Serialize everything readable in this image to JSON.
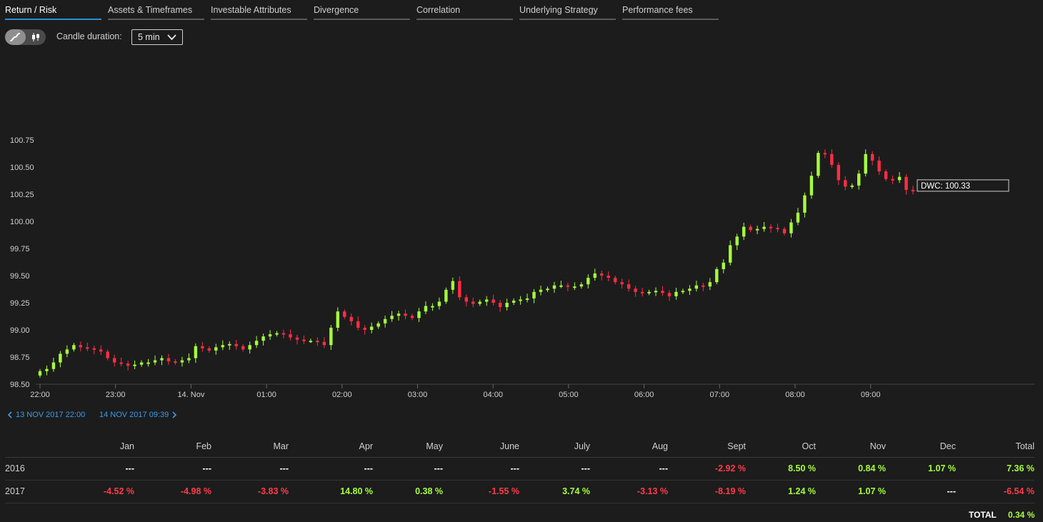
{
  "tabs": [
    {
      "label": "Return / Risk",
      "active": true
    },
    {
      "label": "Assets & Timeframes"
    },
    {
      "label": "Investable Attributes"
    },
    {
      "label": "Divergence"
    },
    {
      "label": "Correlation"
    },
    {
      "label": "Underlying Strategy"
    },
    {
      "label": "Performance fees"
    }
  ],
  "toolbar": {
    "chart_type_toggle": [
      "line-chart-icon",
      "candlestick-icon"
    ],
    "candle_label": "Candle duration:",
    "candle_value": "5 min"
  },
  "colors": {
    "up": "#a6ff3a",
    "down": "#ff2d45",
    "accent": "#2a8fd6",
    "background": "#1c1c1c"
  },
  "chart_data": {
    "type": "candlestick",
    "y_ticks": [
      "100.75",
      "100.50",
      "100.25",
      "100.00",
      "99.75",
      "99.50",
      "99.25",
      "99.00",
      "98.75",
      "98.50"
    ],
    "ylim": [
      98.43,
      100.96
    ],
    "x_ticks": [
      "22:00",
      "23:00",
      "14. Nov",
      "01:00",
      "02:00",
      "03:00",
      "04:00",
      "05:00",
      "06:00",
      "07:00",
      "08:00",
      "09:00"
    ],
    "annotation": "DWC: 100.33",
    "closes": [
      98.62,
      98.64,
      98.7,
      98.78,
      98.82,
      98.86,
      98.84,
      98.83,
      98.82,
      98.8,
      98.74,
      98.7,
      98.69,
      98.67,
      98.68,
      98.7,
      98.7,
      98.72,
      98.74,
      98.71,
      98.7,
      98.72,
      98.74,
      98.85,
      98.83,
      98.81,
      98.84,
      98.86,
      98.87,
      98.85,
      98.82,
      98.86,
      98.9,
      98.94,
      98.96,
      98.97,
      98.96,
      98.93,
      98.91,
      98.9,
      98.9,
      98.89,
      98.86,
      99.02,
      99.17,
      99.12,
      99.08,
      99.02,
      99.0,
      99.03,
      99.06,
      99.1,
      99.13,
      99.15,
      99.13,
      99.11,
      99.17,
      99.22,
      99.22,
      99.26,
      99.37,
      99.45,
      99.3,
      99.26,
      99.24,
      99.26,
      99.28,
      99.25,
      99.21,
      99.25,
      99.27,
      99.28,
      99.29,
      99.35,
      99.37,
      99.38,
      99.41,
      99.41,
      99.4,
      99.4,
      99.42,
      99.48,
      99.52,
      99.5,
      99.48,
      99.44,
      99.42,
      99.38,
      99.35,
      99.34,
      99.35,
      99.36,
      99.34,
      99.31,
      99.35,
      99.36,
      99.38,
      99.41,
      99.4,
      99.44,
      99.56,
      99.62,
      99.78,
      99.86,
      99.95,
      99.92,
      99.93,
      99.95,
      99.94,
      99.93,
      99.89,
      99.99,
      100.08,
      100.24,
      100.42,
      100.63,
      100.62,
      100.52,
      100.38,
      100.32,
      100.33,
      100.44,
      100.62,
      100.56,
      100.46,
      100.39,
      100.38,
      100.41,
      100.29,
      100.28
    ]
  },
  "range": {
    "start": "13 NOV 2017 22:00",
    "end": "14 NOV 2017 09:39"
  },
  "table": {
    "headers": [
      "",
      "Jan",
      "Feb",
      "Mar",
      "Apr",
      "May",
      "June",
      "July",
      "Aug",
      "Sept",
      "Oct",
      "Nov",
      "Dec",
      "Total"
    ],
    "rows": [
      {
        "year": "2016",
        "values": [
          "---",
          "---",
          "---",
          "---",
          "---",
          "---",
          "---",
          "---",
          "-2.92 %",
          "8.50 %",
          "0.84 %",
          "1.07 %",
          "7.36 %"
        ]
      },
      {
        "year": "2017",
        "values": [
          "-4.52 %",
          "-4.98 %",
          "-3.83 %",
          "14.80 %",
          "0.38 %",
          "-1.55 %",
          "3.74 %",
          "-3.13 %",
          "-8.19 %",
          "1.24 %",
          "1.07 %",
          "---",
          "-6.54 %"
        ]
      }
    ],
    "total_label": "TOTAL",
    "total_value": "0.34 %"
  }
}
